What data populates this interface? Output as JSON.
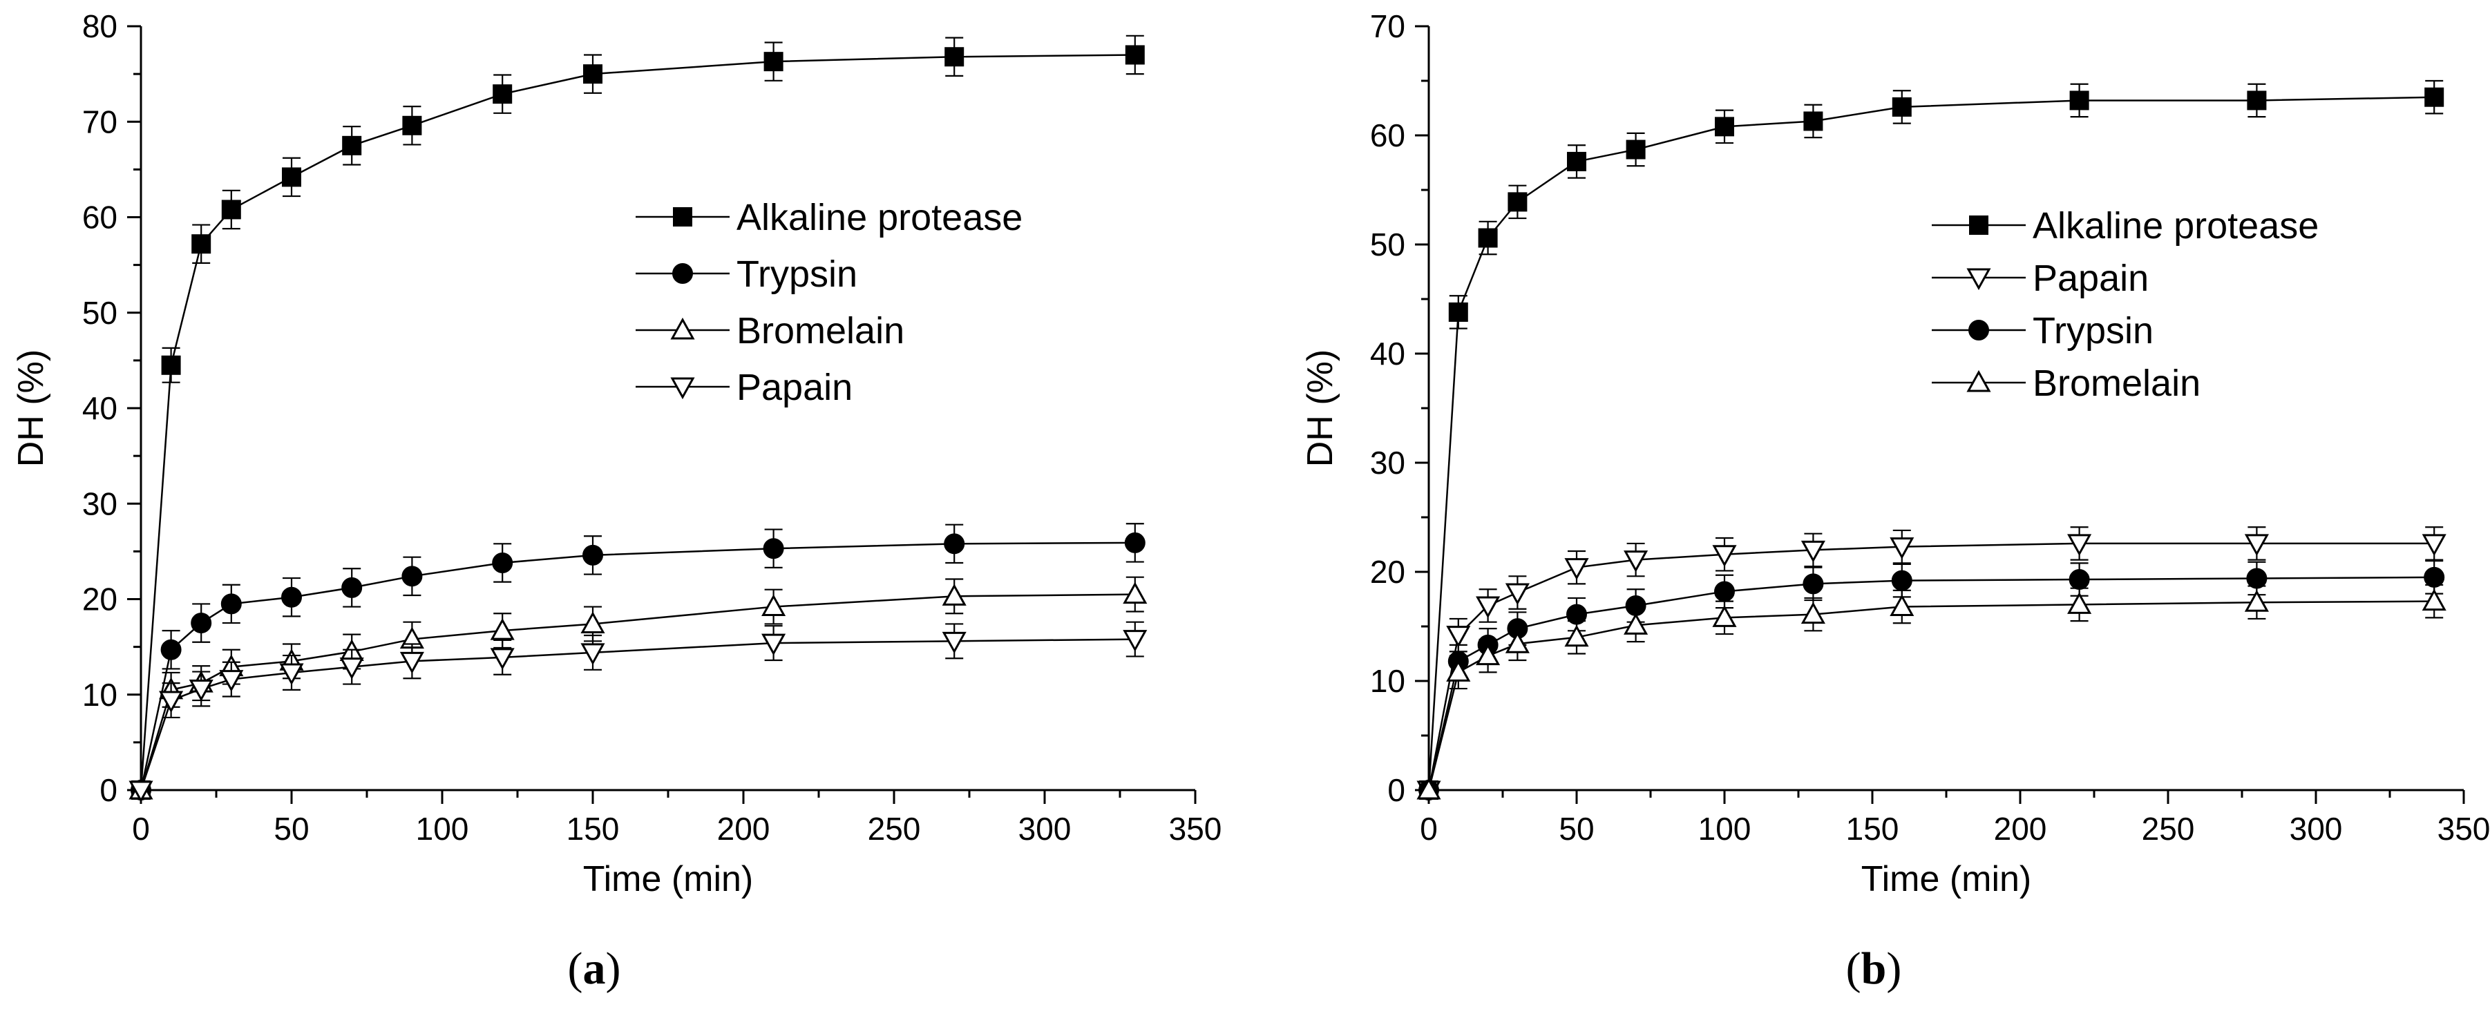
{
  "chart_data": [
    {
      "id": "a",
      "type": "line",
      "panel_label": "a",
      "xlabel": "Time (min)",
      "ylabel": "DH (%)",
      "xlim": [
        0,
        350
      ],
      "ylim": [
        0,
        80
      ],
      "xticks": [
        0,
        50,
        100,
        150,
        200,
        250,
        300,
        350
      ],
      "yticks": [
        0,
        10,
        20,
        30,
        40,
        50,
        60,
        70,
        80
      ],
      "legend_position": "upper-middle-right",
      "series": [
        {
          "name": "Alkaline protease",
          "marker": "square-filled",
          "x": [
            0,
            10,
            20,
            30,
            50,
            70,
            90,
            120,
            150,
            210,
            270,
            330
          ],
          "y": [
            0,
            44.5,
            57.2,
            60.8,
            64.2,
            67.5,
            69.6,
            72.9,
            75.0,
            76.3,
            76.8,
            77.0
          ],
          "err": [
            0,
            1.8,
            2.0,
            2.0,
            2.0,
            2.0,
            2.0,
            2.0,
            2.0,
            2.0,
            2.0,
            2.0
          ]
        },
        {
          "name": "Trypsin",
          "marker": "circle-filled",
          "x": [
            0,
            10,
            20,
            30,
            50,
            70,
            90,
            120,
            150,
            210,
            270,
            330
          ],
          "y": [
            0,
            14.7,
            17.5,
            19.5,
            20.2,
            21.2,
            22.4,
            23.8,
            24.6,
            25.3,
            25.8,
            25.9
          ],
          "err": [
            0,
            2.0,
            2.0,
            2.0,
            2.0,
            2.0,
            2.0,
            2.0,
            2.0,
            2.0,
            2.0,
            2.0
          ]
        },
        {
          "name": "Bromelain",
          "marker": "triangle-up-open",
          "x": [
            0,
            10,
            20,
            30,
            50,
            70,
            90,
            120,
            150,
            210,
            270,
            330
          ],
          "y": [
            0,
            10.5,
            11.2,
            12.9,
            13.5,
            14.5,
            15.8,
            16.7,
            17.4,
            19.2,
            20.3,
            20.5
          ],
          "err": [
            0,
            1.8,
            1.8,
            1.8,
            1.8,
            1.8,
            1.8,
            1.8,
            1.8,
            1.8,
            1.8,
            1.8
          ]
        },
        {
          "name": "Papain",
          "marker": "triangle-down-open",
          "x": [
            0,
            10,
            20,
            30,
            50,
            70,
            90,
            120,
            150,
            210,
            270,
            330
          ],
          "y": [
            0,
            9.4,
            10.6,
            11.6,
            12.3,
            12.9,
            13.5,
            13.9,
            14.4,
            15.4,
            15.6,
            15.8
          ],
          "err": [
            0,
            1.8,
            1.8,
            1.8,
            1.8,
            1.8,
            1.8,
            1.8,
            1.8,
            1.8,
            1.8,
            1.8
          ]
        }
      ]
    },
    {
      "id": "b",
      "type": "line",
      "panel_label": "b",
      "xlabel": "Time (min)",
      "ylabel": "DH (%)",
      "xlim": [
        0,
        350
      ],
      "ylim": [
        0,
        70
      ],
      "xticks": [
        0,
        50,
        100,
        150,
        200,
        250,
        300,
        350
      ],
      "yticks": [
        0,
        10,
        20,
        30,
        40,
        50,
        60,
        70
      ],
      "legend_position": "upper-middle-right",
      "series": [
        {
          "name": "Alkaline protease",
          "marker": "square-filled",
          "x": [
            0,
            10,
            20,
            30,
            50,
            70,
            100,
            130,
            160,
            220,
            280,
            340
          ],
          "y": [
            0,
            43.8,
            50.6,
            53.9,
            57.6,
            58.7,
            60.8,
            61.3,
            62.6,
            63.2,
            63.2,
            63.5
          ],
          "err": [
            0,
            1.5,
            1.5,
            1.5,
            1.5,
            1.5,
            1.5,
            1.5,
            1.5,
            1.5,
            1.5,
            1.5
          ]
        },
        {
          "name": "Papain",
          "marker": "triangle-down-open",
          "x": [
            0,
            10,
            20,
            30,
            50,
            70,
            100,
            130,
            160,
            220,
            280,
            340
          ],
          "y": [
            0,
            14.2,
            16.9,
            18.1,
            20.4,
            21.1,
            21.6,
            22.0,
            22.3,
            22.6,
            22.6,
            22.6
          ],
          "err": [
            0,
            1.5,
            1.5,
            1.5,
            1.5,
            1.5,
            1.5,
            1.5,
            1.5,
            1.5,
            1.5,
            1.5
          ]
        },
        {
          "name": "Trypsin",
          "marker": "circle-filled",
          "x": [
            0,
            10,
            20,
            30,
            50,
            70,
            100,
            130,
            160,
            220,
            280,
            340
          ],
          "y": [
            0,
            11.8,
            13.3,
            14.8,
            16.1,
            16.9,
            18.2,
            18.9,
            19.2,
            19.3,
            19.4,
            19.5
          ],
          "err": [
            0,
            1.5,
            1.5,
            1.5,
            1.5,
            1.5,
            1.5,
            1.5,
            1.5,
            1.5,
            1.5,
            1.5
          ]
        },
        {
          "name": "Bromelain",
          "marker": "triangle-up-open",
          "x": [
            0,
            10,
            20,
            30,
            50,
            70,
            100,
            130,
            160,
            220,
            280,
            340
          ],
          "y": [
            0,
            10.8,
            12.3,
            13.4,
            14.0,
            15.1,
            15.8,
            16.1,
            16.8,
            17.0,
            17.2,
            17.3
          ],
          "err": [
            0,
            1.5,
            1.5,
            1.5,
            1.5,
            1.5,
            1.5,
            1.5,
            1.5,
            1.5,
            1.5,
            1.5
          ]
        }
      ]
    }
  ]
}
